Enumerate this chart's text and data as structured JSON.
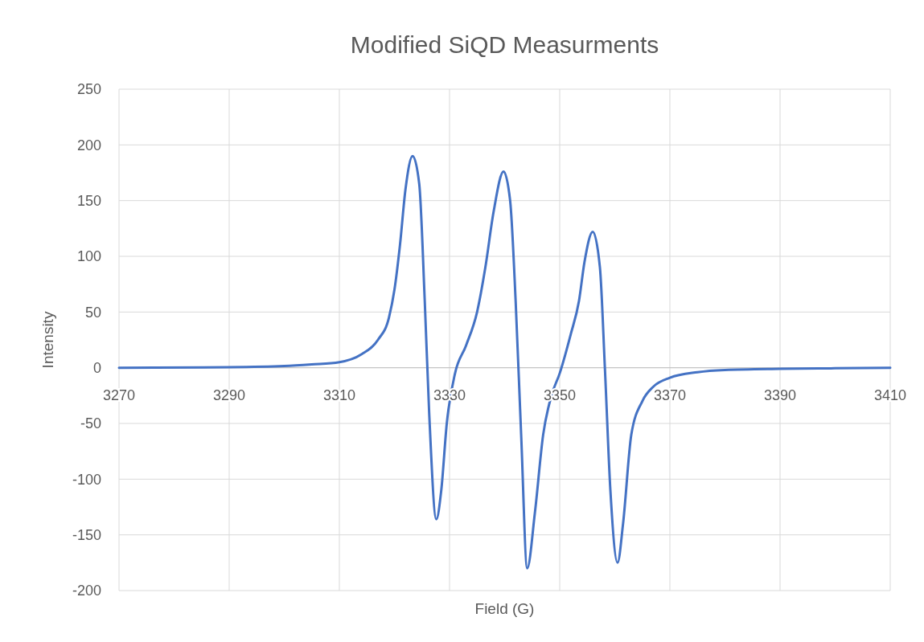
{
  "chart_data": {
    "type": "line",
    "title": "Modified SiQD Measurments",
    "xlabel": "Field (G)",
    "ylabel": "Intensity",
    "xlim": [
      3270,
      3410
    ],
    "xticks": [
      3270,
      3290,
      3310,
      3330,
      3350,
      3370,
      3390,
      3410
    ],
    "ylim": [
      -200,
      250
    ],
    "yticks": [
      -200,
      -150,
      -100,
      -50,
      0,
      50,
      100,
      150,
      200,
      250
    ],
    "grid": true,
    "marker": "none",
    "line_style": "solid",
    "series": [
      {
        "color": "#4472c4",
        "x": [
          3270,
          3290,
          3300,
          3305,
          3310,
          3314,
          3317,
          3319,
          3320,
          3321,
          3322,
          3323.3,
          3324.5,
          3325.5,
          3326.3,
          3327.6,
          3328.5,
          3329.5,
          3331,
          3333,
          3335,
          3336.5,
          3338,
          3339.8,
          3341,
          3342,
          3343,
          3344.1,
          3345.5,
          3347,
          3348.5,
          3350,
          3352,
          3353.5,
          3354.5,
          3356,
          3357.3,
          3358.2,
          3359.2,
          3360.5,
          3361.5,
          3363,
          3365,
          3367,
          3370,
          3375,
          3380,
          3390,
          3400,
          3410
        ],
        "values": [
          0,
          0.5,
          1.5,
          3,
          5,
          12,
          25,
          45,
          70,
          110,
          160,
          190,
          165,
          60,
          -40,
          -136,
          -110,
          -50,
          -5,
          20,
          50,
          90,
          140,
          176,
          150,
          60,
          -60,
          -180,
          -130,
          -60,
          -25,
          -5,
          30,
          60,
          95,
          122,
          90,
          0,
          -110,
          -175,
          -140,
          -60,
          -30,
          -17,
          -9,
          -4,
          -2,
          -1,
          -0.5,
          0
        ]
      }
    ]
  }
}
